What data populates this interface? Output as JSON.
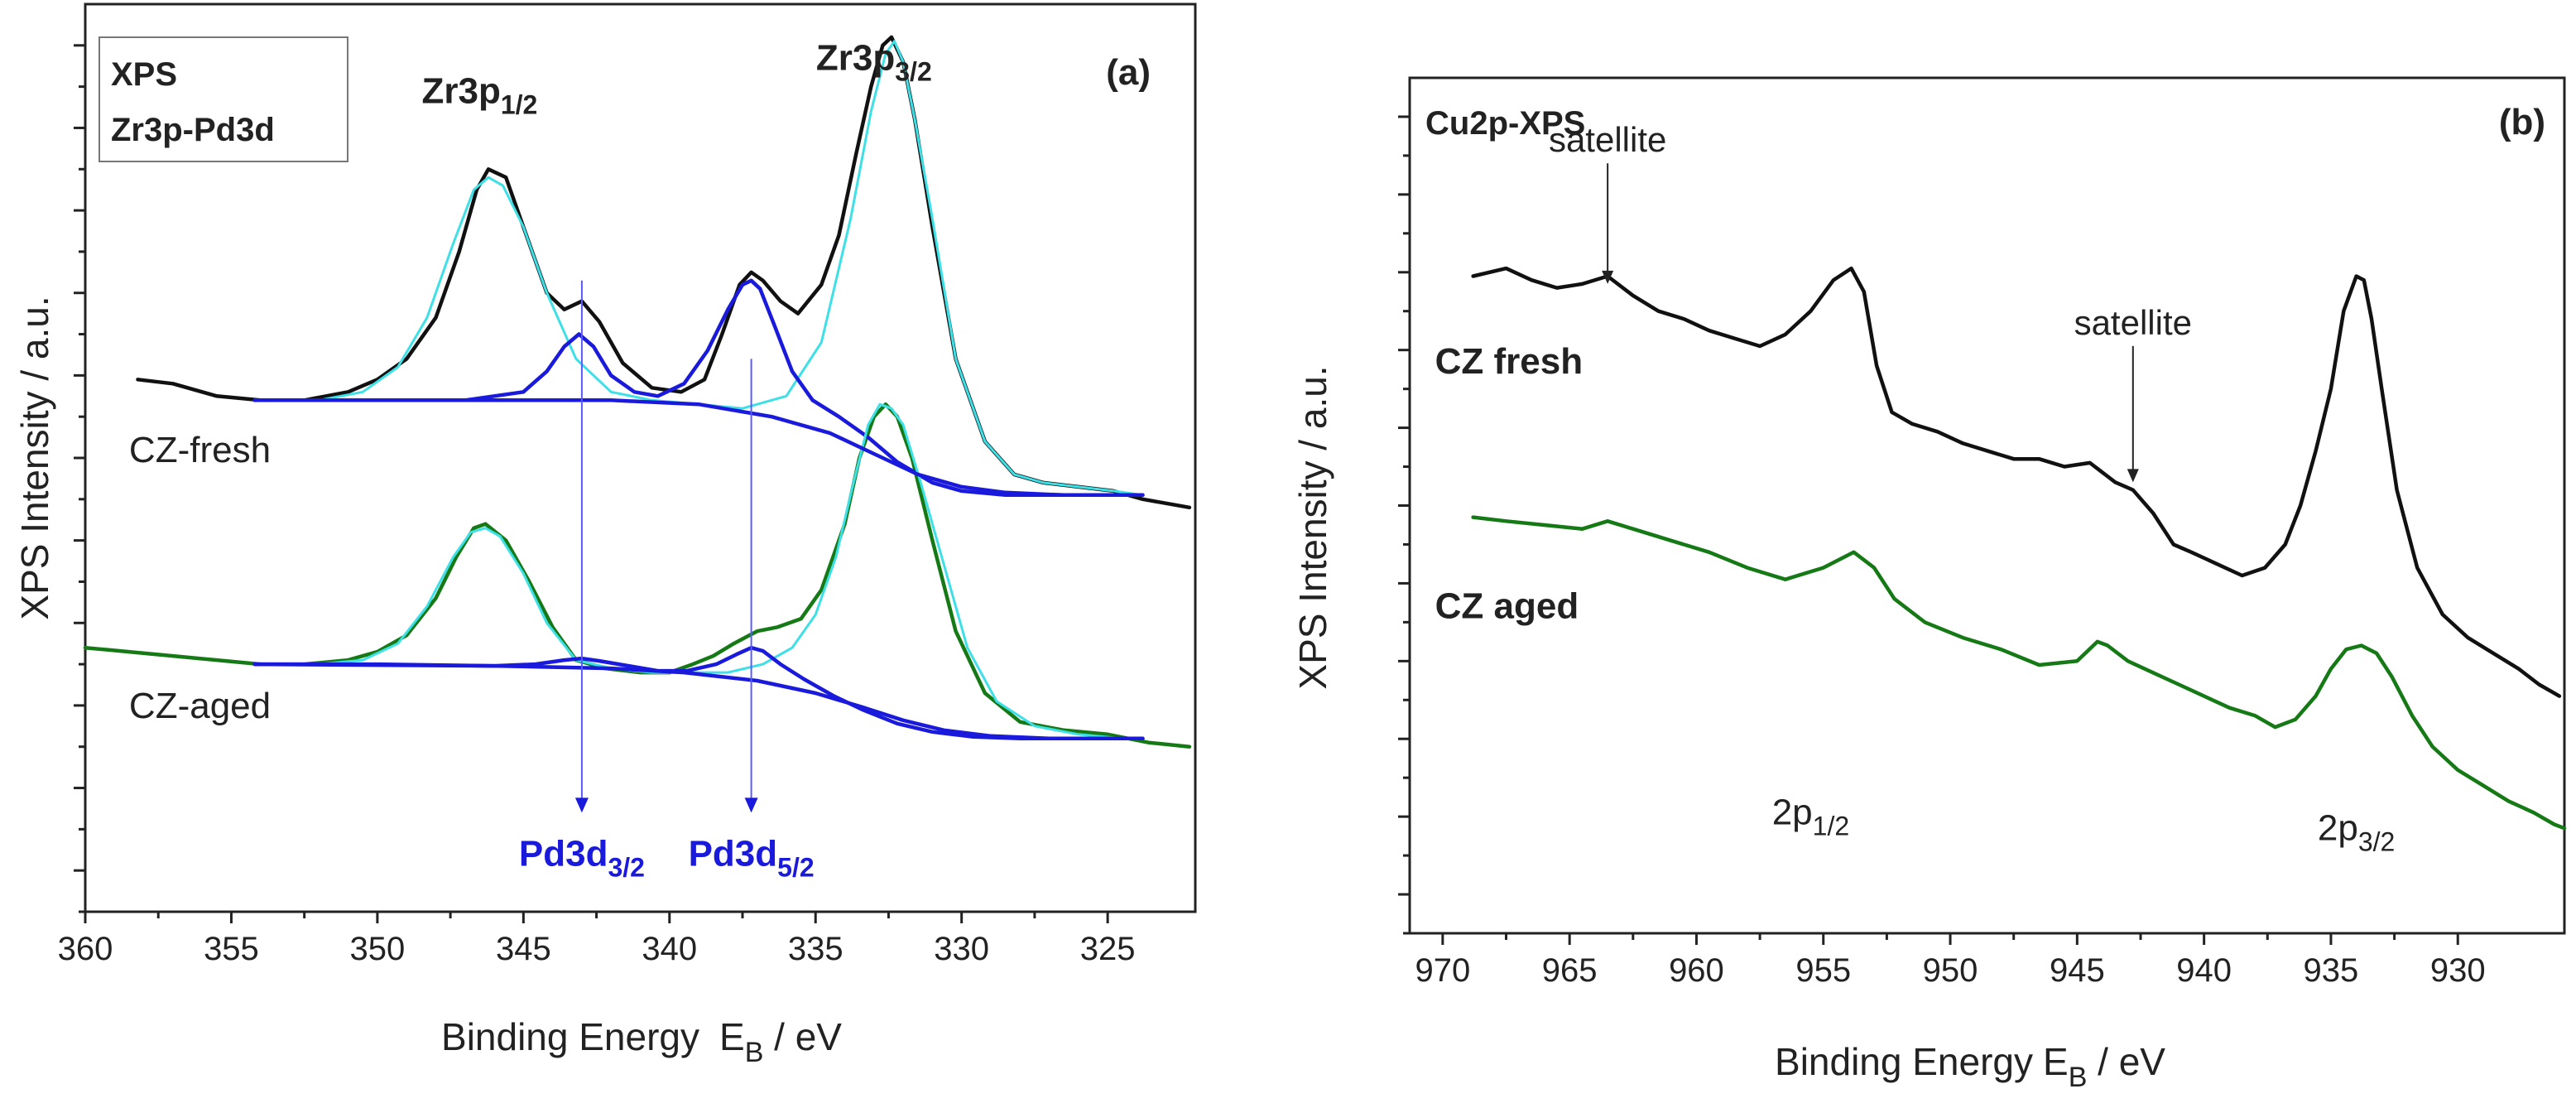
{
  "chart_data": [
    {
      "panel": "(a)",
      "type": "line",
      "title": "XPS Zr3p-Pd3d",
      "legend_lines": [
        "XPS",
        "Zr3p-Pd3d"
      ],
      "xlabel": "Binding Energy",
      "xlabel_symbol": "E",
      "xlabel_sub": "B",
      "xlabel_unit": " / eV",
      "ylabel": "XPS Intensity / a.u.",
      "xlim": [
        360,
        322
      ],
      "ylim": [
        -0.1,
        1.0
      ],
      "x_reversed": true,
      "x_ticks": [
        360,
        355,
        350,
        345,
        340,
        335,
        330,
        325
      ],
      "x_tick_labels": [
        "360",
        "355",
        "350",
        "345",
        "340",
        "335",
        "330",
        "325"
      ],
      "y_tick_labels_shown": false,
      "grid": false,
      "peak_labels": [
        {
          "base": "Zr3p",
          "sub": "1/2",
          "x": 346.5,
          "y": 0.88
        },
        {
          "base": "Zr3p",
          "sub": "3/2",
          "x": 333.0,
          "y": 0.92
        }
      ],
      "pd_markers": [
        {
          "base": "Pd3d",
          "sub": "3/2",
          "x": 343.0,
          "y_start": 0.665,
          "y_end": 0.02
        },
        {
          "base": "Pd3d",
          "sub": "5/2",
          "x": 337.2,
          "y_start": 0.57,
          "y_end": 0.02
        }
      ],
      "series_labels": [
        {
          "text": "CZ-fresh",
          "x": 358.5,
          "y": 0.445
        },
        {
          "text": "CZ-aged",
          "x": 358.5,
          "y": 0.135
        }
      ],
      "series": [
        {
          "name": "CZ-fresh measured",
          "color": "#111111",
          "role": "measured",
          "x": [
            358.2,
            357.0,
            355.5,
            354.0,
            352.5,
            351.0,
            350.0,
            349.0,
            348.0,
            347.2,
            346.6,
            346.2,
            345.6,
            345.0,
            344.2,
            343.6,
            343.0,
            342.4,
            341.6,
            340.6,
            339.6,
            338.8,
            338.2,
            337.6,
            337.2,
            336.8,
            336.2,
            335.6,
            334.8,
            334.2,
            333.6,
            333.1,
            332.7,
            332.4,
            332.0,
            331.6,
            331.0,
            330.2,
            329.2,
            328.2,
            327.2,
            326.0,
            324.8,
            323.8,
            323.0,
            322.2
          ],
          "values": [
            0.545,
            0.54,
            0.525,
            0.52,
            0.52,
            0.53,
            0.545,
            0.57,
            0.62,
            0.7,
            0.775,
            0.8,
            0.79,
            0.73,
            0.65,
            0.63,
            0.64,
            0.615,
            0.565,
            0.535,
            0.53,
            0.545,
            0.6,
            0.66,
            0.675,
            0.665,
            0.64,
            0.625,
            0.66,
            0.72,
            0.82,
            0.9,
            0.95,
            0.96,
            0.93,
            0.86,
            0.73,
            0.57,
            0.47,
            0.43,
            0.42,
            0.415,
            0.41,
            0.4,
            0.395,
            0.39
          ]
        },
        {
          "name": "CZ-fresh Zr3p envelope fit",
          "color": "#3ee0e8",
          "role": "fit",
          "x": [
            354.2,
            352.0,
            350.5,
            349.3,
            348.3,
            347.4,
            346.7,
            346.2,
            345.7,
            345.0,
            344.2,
            343.2,
            342.0,
            340.6,
            339.0,
            337.5,
            336.0,
            334.8,
            333.8,
            333.1,
            332.6,
            332.3,
            332.0,
            331.6,
            331.0,
            330.2,
            329.2,
            328.2,
            327.2,
            326.0,
            324.8,
            323.8
          ],
          "values": [
            0.52,
            0.52,
            0.53,
            0.56,
            0.62,
            0.71,
            0.775,
            0.79,
            0.78,
            0.73,
            0.65,
            0.57,
            0.53,
            0.52,
            0.515,
            0.51,
            0.525,
            0.59,
            0.74,
            0.87,
            0.94,
            0.955,
            0.93,
            0.86,
            0.74,
            0.57,
            0.47,
            0.43,
            0.42,
            0.415,
            0.41,
            0.405
          ]
        },
        {
          "name": "CZ-fresh Pd3d fit",
          "color": "#1a1adc",
          "role": "fit",
          "x": [
            354.2,
            350.0,
            347.0,
            345.0,
            344.2,
            343.6,
            343.1,
            342.6,
            342.0,
            341.2,
            340.4,
            339.5,
            338.7,
            338.0,
            337.5,
            337.2,
            336.9,
            336.4,
            335.8,
            335.1,
            334.2,
            333.2,
            332.2,
            331.0,
            330.0,
            328.5,
            326.5,
            324.5,
            323.8
          ],
          "values": [
            0.52,
            0.52,
            0.52,
            0.53,
            0.555,
            0.585,
            0.6,
            0.585,
            0.55,
            0.53,
            0.525,
            0.54,
            0.58,
            0.63,
            0.66,
            0.665,
            0.655,
            0.61,
            0.555,
            0.52,
            0.5,
            0.475,
            0.445,
            0.42,
            0.41,
            0.405,
            0.405,
            0.405,
            0.405
          ]
        },
        {
          "name": "CZ-fresh background",
          "color": "#1a1adc",
          "role": "background",
          "x": [
            354.2,
            347.0,
            342.0,
            339.0,
            336.5,
            334.5,
            333.0,
            331.5,
            330.0,
            328.5,
            326.5,
            324.5,
            323.8
          ],
          "values": [
            0.52,
            0.52,
            0.52,
            0.515,
            0.5,
            0.48,
            0.455,
            0.43,
            0.415,
            0.408,
            0.405,
            0.405,
            0.405
          ]
        },
        {
          "name": "CZ-aged measured",
          "color": "#157a15",
          "role": "measured",
          "x": [
            360.0,
            358.5,
            357.0,
            355.5,
            354.0,
            352.5,
            351.0,
            350.0,
            349.0,
            348.0,
            347.3,
            346.7,
            346.3,
            345.6,
            344.8,
            344.0,
            343.2,
            342.2,
            341.0,
            340.0,
            339.2,
            338.5,
            337.8,
            337.0,
            336.3,
            335.5,
            334.8,
            334.0,
            333.5,
            333.0,
            332.6,
            332.2,
            331.7,
            331.0,
            330.2,
            329.2,
            328.0,
            326.5,
            325.0,
            323.6,
            322.2
          ],
          "values": [
            0.22,
            0.215,
            0.21,
            0.205,
            0.2,
            0.2,
            0.205,
            0.215,
            0.235,
            0.28,
            0.33,
            0.365,
            0.37,
            0.35,
            0.3,
            0.245,
            0.205,
            0.195,
            0.19,
            0.19,
            0.2,
            0.21,
            0.225,
            0.24,
            0.245,
            0.255,
            0.29,
            0.37,
            0.45,
            0.5,
            0.515,
            0.5,
            0.45,
            0.35,
            0.24,
            0.165,
            0.13,
            0.12,
            0.115,
            0.105,
            0.1
          ]
        },
        {
          "name": "CZ-aged Zr3p envelope fit",
          "color": "#3ee0e8",
          "role": "fit",
          "x": [
            354.2,
            352.0,
            350.5,
            349.3,
            348.3,
            347.4,
            346.8,
            346.3,
            345.8,
            345.0,
            344.2,
            343.2,
            342.0,
            340.6,
            339.2,
            338.0,
            336.8,
            335.8,
            335.0,
            334.3,
            333.7,
            333.2,
            332.8,
            332.4,
            332.0,
            331.4,
            330.6,
            329.8,
            328.8,
            327.5,
            326.0,
            324.5,
            323.8
          ],
          "values": [
            0.2,
            0.2,
            0.205,
            0.225,
            0.27,
            0.33,
            0.36,
            0.365,
            0.355,
            0.31,
            0.25,
            0.205,
            0.195,
            0.19,
            0.19,
            0.19,
            0.2,
            0.22,
            0.26,
            0.33,
            0.42,
            0.49,
            0.515,
            0.51,
            0.49,
            0.42,
            0.32,
            0.22,
            0.155,
            0.125,
            0.115,
            0.11,
            0.11
          ]
        },
        {
          "name": "CZ-aged Pd3d fit",
          "color": "#1a1adc",
          "role": "fit",
          "x": [
            354.2,
            350.0,
            346.0,
            344.6,
            343.6,
            343.0,
            342.4,
            341.4,
            340.4,
            339.4,
            338.4,
            337.7,
            337.2,
            336.8,
            336.2,
            335.4,
            334.4,
            333.4,
            332.2,
            331.0,
            329.6,
            328.0,
            326.0,
            324.4,
            323.8
          ],
          "values": [
            0.2,
            0.2,
            0.198,
            0.2,
            0.205,
            0.207,
            0.204,
            0.198,
            0.192,
            0.192,
            0.2,
            0.212,
            0.22,
            0.216,
            0.2,
            0.182,
            0.162,
            0.145,
            0.128,
            0.118,
            0.112,
            0.11,
            0.11,
            0.11,
            0.11
          ]
        },
        {
          "name": "CZ-aged background",
          "color": "#1a1adc",
          "role": "background",
          "x": [
            354.2,
            346.0,
            342.0,
            339.5,
            337.0,
            335.0,
            333.4,
            332.0,
            330.6,
            329.0,
            327.0,
            325.0,
            323.8
          ],
          "values": [
            0.2,
            0.198,
            0.195,
            0.19,
            0.18,
            0.165,
            0.148,
            0.132,
            0.12,
            0.113,
            0.11,
            0.11,
            0.11
          ]
        }
      ]
    },
    {
      "panel": "(b)",
      "type": "line",
      "title": "Cu2p-XPS",
      "xlabel": "Binding Energy",
      "xlabel_symbol": "E",
      "xlabel_sub": "B",
      "xlabel_unit": " / eV",
      "ylabel": "XPS Intensity / a.u.",
      "xlim": [
        971.3,
        925.8
      ],
      "ylim": [
        -0.1,
        1.0
      ],
      "x_reversed": true,
      "x_ticks": [
        970,
        965,
        960,
        955,
        950,
        945,
        940,
        935,
        930
      ],
      "x_tick_labels": [
        "970",
        "965",
        "960",
        "955",
        "950",
        "945",
        "940",
        "935",
        "930"
      ],
      "y_tick_labels_shown": false,
      "grid": false,
      "annotations": [
        {
          "text": "satellite",
          "x": 963.5,
          "y": 0.905,
          "arrow_to_y": 0.735
        },
        {
          "text": "satellite",
          "x": 942.8,
          "y": 0.67,
          "arrow_to_y": 0.48
        }
      ],
      "peak_labels": [
        {
          "base": "2p",
          "sub": "1/2",
          "x": 955.5,
          "y": 0.04
        },
        {
          "base": "2p",
          "sub": "3/2",
          "x": 934.0,
          "y": 0.02
        }
      ],
      "series_labels": [
        {
          "text": "CZ fresh",
          "x": 970.3,
          "y": 0.62
        },
        {
          "text": "CZ aged",
          "x": 970.3,
          "y": 0.305
        }
      ],
      "series": [
        {
          "name": "CZ fresh",
          "color": "#111111",
          "x": [
            968.8,
            967.5,
            966.5,
            965.5,
            964.5,
            963.5,
            962.5,
            961.5,
            960.5,
            959.5,
            958.5,
            957.5,
            956.5,
            955.5,
            954.6,
            953.9,
            953.4,
            952.9,
            952.3,
            951.5,
            950.5,
            949.5,
            948.5,
            947.5,
            946.5,
            945.5,
            944.5,
            943.5,
            942.8,
            942.0,
            941.2,
            940.5,
            939.5,
            938.5,
            937.6,
            936.8,
            936.2,
            935.6,
            935.0,
            934.5,
            934.0,
            933.7,
            933.4,
            933.0,
            932.4,
            931.6,
            930.6,
            929.6,
            928.6,
            927.6,
            926.8,
            926.0
          ],
          "values": [
            0.745,
            0.755,
            0.74,
            0.73,
            0.735,
            0.745,
            0.72,
            0.7,
            0.69,
            0.675,
            0.665,
            0.655,
            0.67,
            0.7,
            0.74,
            0.755,
            0.725,
            0.63,
            0.57,
            0.555,
            0.545,
            0.53,
            0.52,
            0.51,
            0.51,
            0.5,
            0.505,
            0.48,
            0.47,
            0.44,
            0.4,
            0.39,
            0.375,
            0.36,
            0.37,
            0.4,
            0.45,
            0.52,
            0.6,
            0.7,
            0.745,
            0.74,
            0.69,
            0.6,
            0.47,
            0.37,
            0.31,
            0.28,
            0.26,
            0.24,
            0.22,
            0.205
          ]
        },
        {
          "name": "CZ aged",
          "color": "#157a15",
          "x": [
            968.8,
            967.5,
            966.0,
            964.5,
            963.5,
            962.5,
            961.0,
            959.5,
            958.0,
            956.5,
            955.0,
            953.8,
            953.0,
            952.2,
            951.0,
            949.5,
            948.0,
            946.5,
            945.0,
            944.2,
            943.8,
            943.0,
            942.0,
            941.0,
            940.0,
            939.0,
            938.0,
            937.2,
            936.4,
            935.6,
            935.0,
            934.4,
            933.8,
            933.2,
            932.6,
            931.8,
            931.0,
            930.0,
            929.0,
            928.0,
            927.0,
            926.2,
            925.8
          ],
          "values": [
            0.435,
            0.43,
            0.425,
            0.42,
            0.43,
            0.42,
            0.405,
            0.39,
            0.37,
            0.355,
            0.37,
            0.39,
            0.37,
            0.33,
            0.3,
            0.28,
            0.265,
            0.245,
            0.25,
            0.275,
            0.27,
            0.25,
            0.235,
            0.22,
            0.205,
            0.19,
            0.18,
            0.165,
            0.175,
            0.205,
            0.24,
            0.265,
            0.27,
            0.26,
            0.23,
            0.18,
            0.14,
            0.11,
            0.09,
            0.07,
            0.055,
            0.04,
            0.035
          ]
        }
      ]
    }
  ]
}
